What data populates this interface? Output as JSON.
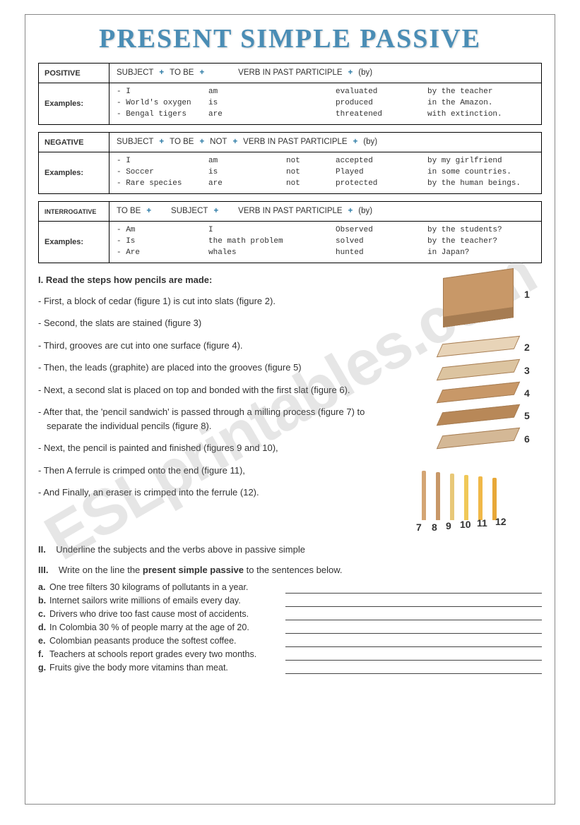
{
  "title": "PRESENT SIMPLE PASSIVE",
  "watermark": "ESLprintables.com",
  "boxes": {
    "positive": {
      "label": "POSITIVE",
      "formula": {
        "p1": "SUBJECT",
        "p2": "TO BE",
        "p3": "VERB IN PAST PARTICIPLE",
        "p4": "(by)"
      },
      "ex_label": "Examples:",
      "ex": [
        {
          "c1": "- I",
          "c2": "am",
          "c3": "",
          "c4": "evaluated",
          "c5": "by the teacher"
        },
        {
          "c1": "- World's oxygen",
          "c2": "is",
          "c3": "",
          "c4": "produced",
          "c5": "in the Amazon."
        },
        {
          "c1": "- Bengal tigers",
          "c2": "are",
          "c3": "",
          "c4": "threatened",
          "c5": "with extinction."
        }
      ]
    },
    "negative": {
      "label": "NEGATIVE",
      "formula": {
        "p1": "SUBJECT",
        "p2": "TO BE",
        "p2b": "NOT",
        "p3": "VERB IN PAST PARTICIPLE",
        "p4": "(by)"
      },
      "ex_label": "Examples:",
      "ex": [
        {
          "c1": "- I",
          "c2": "am",
          "c3": "not",
          "c4": "accepted",
          "c5": "by my girlfriend"
        },
        {
          "c1": "- Soccer",
          "c2": "is",
          "c3": "not",
          "c4": "Played",
          "c5": "in some countries."
        },
        {
          "c1": "- Rare species",
          "c2": "are",
          "c3": "not",
          "c4": "protected",
          "c5": "by the human beings."
        }
      ]
    },
    "interrogative": {
      "label": "INTERROGATIVE",
      "formula": {
        "p1": "TO BE",
        "p2": "SUBJECT",
        "p3": "VERB IN PAST PARTICIPLE",
        "p4": "(by)"
      },
      "ex_label": "Examples:",
      "ex": [
        {
          "c1": "- Am",
          "c2": "I",
          "c3": "",
          "c4": "Observed",
          "c5": "by the students?"
        },
        {
          "c1": "- Is",
          "c2": "the math problem",
          "c3": "",
          "c4": "solved",
          "c5": "by the teacher?"
        },
        {
          "c1": "- Are",
          "c2": "whales",
          "c3": "",
          "c4": "hunted",
          "c5": "in Japan?"
        }
      ]
    }
  },
  "section1": {
    "heading": "I. Read the steps how pencils are made:",
    "steps": [
      "- First, a block of cedar (figure 1) is cut into slats (figure 2).",
      "- Second, the slats are stained (figure 3)",
      "- Third, grooves are cut into one surface (figure 4).",
      "- Then, the leads (graphite) are placed into the grooves (figure 5)",
      "- Next, a second slat is placed on top and bonded with the first slat (figure 6).",
      "- After that, the 'pencil sandwich' is passed through a milling process (figure 7)  to separate the  individual  pencils (figure 8).",
      "- Next, the pencil is painted and finished (figures 9 and 10),",
      "-  Then A ferrule is crimped onto the end  (figure 11),",
      "-  And Finally, an eraser is crimped into the  ferrule (12)."
    ],
    "diagram_numbers": [
      "1",
      "2",
      "3",
      "4",
      "5",
      "6",
      "7",
      "8",
      "9",
      "10",
      "11",
      "12"
    ]
  },
  "section2": {
    "heading_a": "II.",
    "heading_b": "Underline the subjects and the verbs above in passive simple"
  },
  "section3": {
    "heading_a": "III.",
    "heading_b": "Write on the line the",
    "heading_bold": "present simple passive",
    "heading_c": "to the sentences below.",
    "items": [
      {
        "l": "a.",
        "t": "One tree filters 30 kilograms of pollutants in a year."
      },
      {
        "l": "b.",
        "t": "Internet sailors write millions of emails every day."
      },
      {
        "l": "c.",
        "t": "Drivers who drive too fast cause most of accidents."
      },
      {
        "l": "d.",
        "t": "In Colombia 30 % of people marry at the age of 20."
      },
      {
        "l": "e.",
        "t": "Colombian peasants produce the softest coffee."
      },
      {
        "l": "f.",
        "t": "Teachers at schools report grades every two months."
      },
      {
        "l": "g.",
        "t": "Fruits give the body more vitamins than meat."
      }
    ]
  }
}
